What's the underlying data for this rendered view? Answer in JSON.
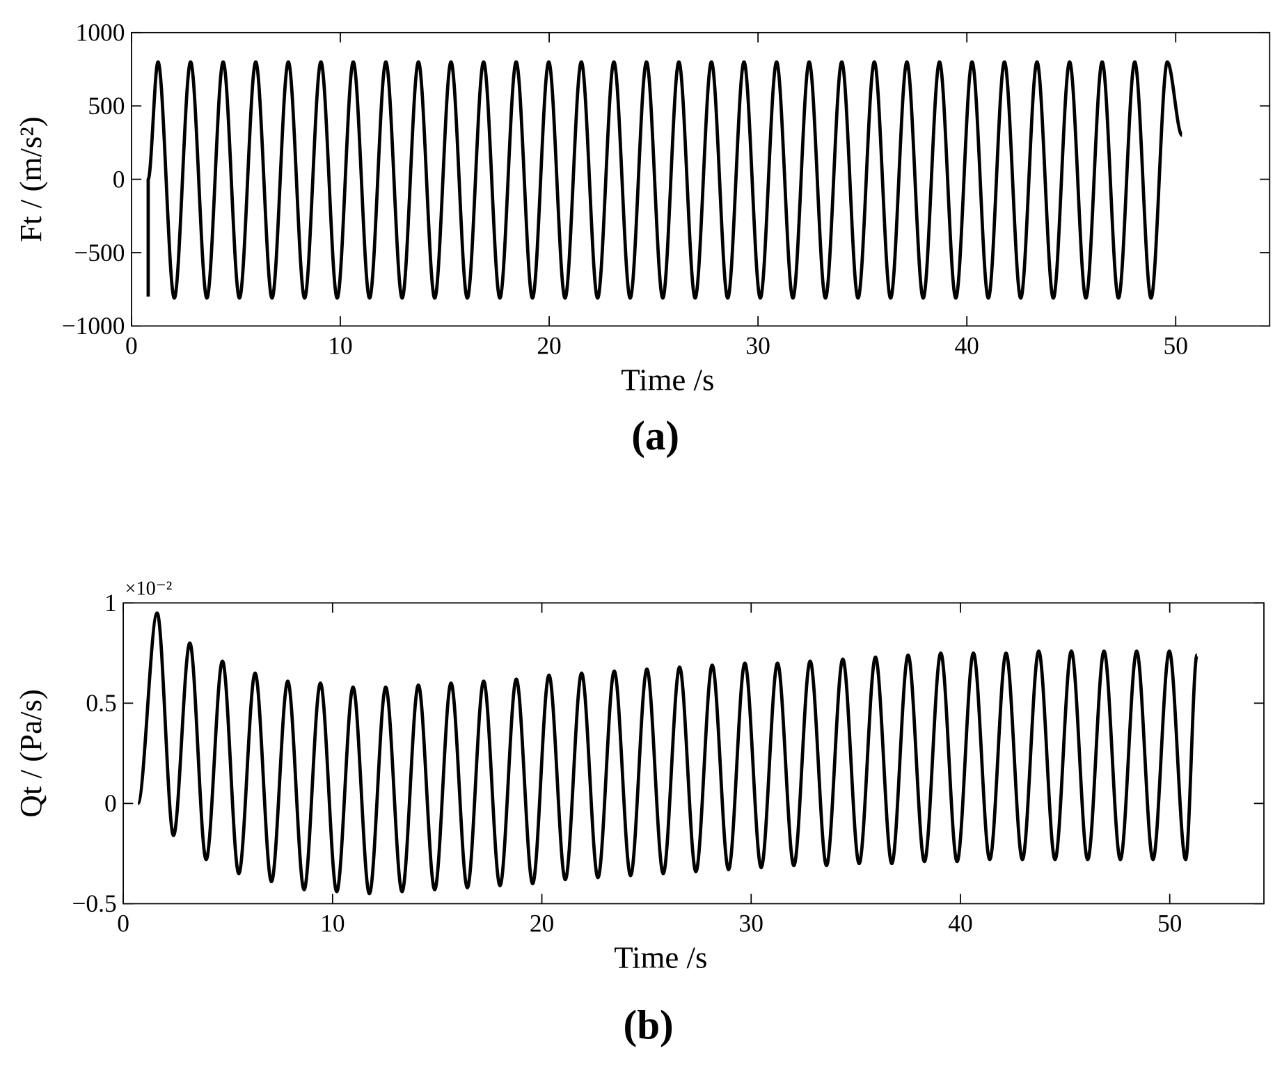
{
  "chart_data": [
    {
      "type": "line",
      "caption": "(a)",
      "xlabel": "Time /s",
      "ylabel": "Ft / (m/s²)",
      "color": "#000000",
      "xlim": [
        0,
        54.5
      ],
      "xticks": [
        0,
        10,
        20,
        30,
        40,
        50
      ],
      "ylim": [
        -1000,
        1000
      ],
      "yticks": [
        {
          "value": -1000,
          "label": "−1000"
        },
        {
          "value": -500,
          "label": "−500"
        },
        0,
        500,
        1000
      ],
      "x": [
        0.8,
        0.8,
        1.27,
        2.05,
        2.83,
        3.61,
        4.39,
        5.17,
        5.95,
        6.73,
        7.51,
        8.29,
        9.07,
        9.85,
        10.62,
        11.4,
        12.18,
        12.96,
        13.74,
        14.52,
        15.3,
        16.08,
        16.86,
        17.64,
        18.42,
        19.2,
        19.98,
        20.76,
        21.54,
        22.32,
        23.1,
        23.88,
        24.66,
        25.44,
        26.21,
        26.99,
        27.77,
        28.55,
        29.33,
        30.11,
        30.89,
        31.67,
        32.45,
        33.23,
        34.01,
        34.79,
        35.57,
        36.35,
        37.13,
        37.91,
        38.69,
        39.47,
        40.25,
        41.03,
        41.8,
        42.58,
        43.36,
        44.14,
        44.92,
        45.7,
        46.48,
        47.26,
        48.04,
        48.82,
        49.6,
        50.3
      ],
      "values": [
        -800,
        0,
        800,
        -810,
        800,
        -810,
        800,
        -810,
        800,
        -810,
        800,
        -810,
        800,
        -810,
        800,
        -810,
        800,
        -810,
        800,
        -810,
        800,
        -810,
        800,
        -810,
        800,
        -810,
        800,
        -810,
        800,
        -810,
        800,
        -810,
        800,
        -810,
        800,
        -810,
        800,
        -810,
        800,
        -810,
        800,
        -810,
        800,
        -810,
        800,
        -810,
        800,
        -810,
        800,
        -810,
        800,
        -810,
        800,
        -810,
        800,
        -810,
        800,
        -810,
        800,
        -810,
        800,
        -810,
        800,
        -810,
        800,
        300
      ]
    },
    {
      "type": "line",
      "caption": "(b)",
      "xlabel": "Time /s",
      "ylabel": "Qt / (Pa/s)",
      "multiplier": "×10⁻²",
      "color": "#000000",
      "xlim": [
        0,
        54.5
      ],
      "xticks": [
        0,
        10,
        20,
        30,
        40,
        50
      ],
      "ylim": [
        -0.5,
        1
      ],
      "yticks": [
        {
          "value": -0.5,
          "label": "−0.5"
        },
        0,
        0.5,
        1
      ],
      "x": [
        0.7,
        1.62,
        2.4,
        3.18,
        3.96,
        4.74,
        5.52,
        6.3,
        7.08,
        7.86,
        8.64,
        9.42,
        10.2,
        10.98,
        11.76,
        12.54,
        13.32,
        14.1,
        14.88,
        15.66,
        16.44,
        17.22,
        18.0,
        18.78,
        19.56,
        20.34,
        21.12,
        21.9,
        22.68,
        23.46,
        24.24,
        25.02,
        25.8,
        26.58,
        27.36,
        28.14,
        28.92,
        29.7,
        30.48,
        31.26,
        32.04,
        32.82,
        33.6,
        34.38,
        35.16,
        35.94,
        36.72,
        37.5,
        38.28,
        39.06,
        39.84,
        40.62,
        41.4,
        42.18,
        42.96,
        43.74,
        44.52,
        45.3,
        46.08,
        46.86,
        47.64,
        48.42,
        49.2,
        49.98,
        50.76,
        51.3
      ],
      "values": [
        0,
        0.95,
        -0.16,
        0.8,
        -0.28,
        0.71,
        -0.35,
        0.65,
        -0.39,
        0.61,
        -0.43,
        0.6,
        -0.44,
        0.58,
        -0.45,
        0.58,
        -0.44,
        0.59,
        -0.43,
        0.6,
        -0.42,
        0.61,
        -0.41,
        0.62,
        -0.4,
        0.64,
        -0.38,
        0.65,
        -0.37,
        0.66,
        -0.36,
        0.67,
        -0.35,
        0.68,
        -0.34,
        0.69,
        -0.33,
        0.7,
        -0.32,
        0.7,
        -0.31,
        0.71,
        -0.31,
        0.72,
        -0.3,
        0.73,
        -0.3,
        0.74,
        -0.29,
        0.75,
        -0.29,
        0.75,
        -0.28,
        0.75,
        -0.28,
        0.76,
        -0.28,
        0.76,
        -0.28,
        0.76,
        -0.28,
        0.76,
        -0.28,
        0.76,
        -0.28,
        0.74
      ]
    }
  ]
}
